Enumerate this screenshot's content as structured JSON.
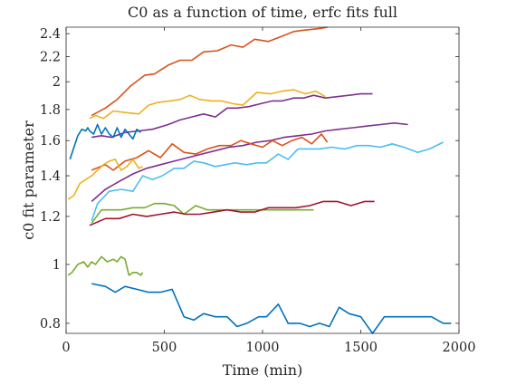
{
  "chart_data": {
    "type": "line",
    "title": "C0 as a function of time, erfc fits full",
    "xlabel": "Time (min)",
    "ylabel": "c0 fit parameter",
    "xlim": [
      0,
      2000
    ],
    "ylim": [
      0.77,
      2.46
    ],
    "yscale": "log",
    "xticks": [
      0,
      500,
      1000,
      1500,
      2000
    ],
    "yticks": [
      0.8,
      1,
      1.2,
      1.4,
      1.6,
      1.8,
      2,
      2.2,
      2.4
    ],
    "xtick_labels": [
      "0",
      "500",
      "1000",
      "1500",
      "2000"
    ],
    "ytick_labels": [
      "0.8",
      "1",
      "1.2",
      "1.4",
      "1.6",
      "1.8",
      "2",
      "2.2",
      "2.4"
    ],
    "grid": false,
    "legend": "none",
    "series": [
      {
        "color": "#D95319",
        "x": [
          130,
          200,
          260,
          330,
          400,
          450,
          520,
          580,
          640,
          700,
          770,
          840,
          900,
          960,
          1030,
          1090,
          1160,
          1200,
          1250,
          1300,
          1330
        ],
        "y": [
          1.76,
          1.81,
          1.87,
          1.97,
          2.05,
          2.06,
          2.13,
          2.17,
          2.17,
          2.24,
          2.25,
          2.3,
          2.28,
          2.35,
          2.33,
          2.37,
          2.42,
          2.43,
          2.44,
          2.45,
          2.46
        ]
      },
      {
        "color": "#EDB120",
        "x": [
          120,
          150,
          190,
          240,
          300,
          370,
          420,
          470,
          530,
          580,
          630,
          680,
          740,
          790,
          850,
          900,
          970,
          1040,
          1100,
          1160,
          1220,
          1270,
          1320
        ],
        "y": [
          1.74,
          1.76,
          1.74,
          1.79,
          1.78,
          1.77,
          1.83,
          1.85,
          1.86,
          1.87,
          1.9,
          1.87,
          1.86,
          1.86,
          1.84,
          1.83,
          1.92,
          1.91,
          1.93,
          1.94,
          1.91,
          1.93,
          1.89
        ]
      },
      {
        "color": "#7E2F8E",
        "x": [
          130,
          180,
          230,
          300,
          370,
          440,
          520,
          580,
          640,
          700,
          760,
          820,
          870,
          930,
          990,
          1050,
          1100,
          1160,
          1210,
          1260,
          1320,
          1380,
          1440,
          1500,
          1560
        ],
        "y": [
          1.62,
          1.63,
          1.62,
          1.65,
          1.66,
          1.67,
          1.7,
          1.73,
          1.75,
          1.77,
          1.75,
          1.81,
          1.81,
          1.82,
          1.84,
          1.86,
          1.86,
          1.88,
          1.88,
          1.9,
          1.88,
          1.89,
          1.9,
          1.91,
          1.91
        ]
      },
      {
        "color": "#7E2F8E",
        "x": [
          130,
          200,
          270,
          340,
          410,
          480,
          550,
          620,
          690,
          760,
          830,
          900,
          970,
          1040,
          1110,
          1180,
          1250,
          1320,
          1390,
          1460,
          1530,
          1600,
          1670,
          1740
        ],
        "y": [
          1.27,
          1.33,
          1.37,
          1.41,
          1.44,
          1.46,
          1.48,
          1.5,
          1.52,
          1.54,
          1.56,
          1.57,
          1.59,
          1.6,
          1.62,
          1.63,
          1.64,
          1.66,
          1.67,
          1.68,
          1.69,
          1.7,
          1.71,
          1.7
        ]
      },
      {
        "color": "#D95319",
        "x": [
          130,
          200,
          240,
          300,
          360,
          420,
          480,
          540,
          600,
          660,
          720,
          780,
          840,
          890,
          940,
          1000,
          1050,
          1100,
          1150,
          1200,
          1250,
          1300,
          1330
        ],
        "y": [
          1.43,
          1.46,
          1.43,
          1.48,
          1.5,
          1.54,
          1.5,
          1.58,
          1.53,
          1.52,
          1.55,
          1.57,
          1.57,
          1.6,
          1.58,
          1.56,
          1.6,
          1.57,
          1.6,
          1.62,
          1.58,
          1.64,
          1.59
        ]
      },
      {
        "color": "#4DBEEE",
        "x": [
          130,
          160,
          220,
          280,
          340,
          390,
          440,
          490,
          550,
          600,
          650,
          700,
          760,
          810,
          860,
          920,
          970,
          1020,
          1080,
          1130,
          1180,
          1240,
          1290,
          1350,
          1420,
          1480,
          1540,
          1600,
          1660,
          1720,
          1790,
          1850,
          1920
        ],
        "y": [
          1.18,
          1.26,
          1.32,
          1.33,
          1.32,
          1.4,
          1.38,
          1.4,
          1.44,
          1.44,
          1.48,
          1.47,
          1.45,
          1.46,
          1.47,
          1.46,
          1.47,
          1.47,
          1.52,
          1.49,
          1.55,
          1.55,
          1.55,
          1.56,
          1.55,
          1.57,
          1.57,
          1.56,
          1.58,
          1.56,
          1.53,
          1.55,
          1.59
        ]
      },
      {
        "color": "#77AC30",
        "x": [
          130,
          180,
          220,
          280,
          340,
          400,
          450,
          500,
          550,
          600,
          660,
          720,
          780,
          840,
          900,
          960,
          1020,
          1090,
          1150,
          1200,
          1260
        ],
        "y": [
          1.17,
          1.23,
          1.23,
          1.23,
          1.24,
          1.24,
          1.26,
          1.26,
          1.25,
          1.21,
          1.25,
          1.23,
          1.23,
          1.23,
          1.23,
          1.23,
          1.23,
          1.23,
          1.23,
          1.23,
          1.23
        ]
      },
      {
        "color": "#A2142F",
        "x": [
          120,
          200,
          270,
          340,
          410,
          480,
          550,
          610,
          680,
          750,
          820,
          890,
          960,
          1030,
          1100,
          1170,
          1240,
          1310,
          1380,
          1450,
          1520,
          1570
        ],
        "y": [
          1.16,
          1.19,
          1.19,
          1.21,
          1.2,
          1.21,
          1.22,
          1.21,
          1.21,
          1.22,
          1.23,
          1.22,
          1.22,
          1.24,
          1.24,
          1.24,
          1.25,
          1.27,
          1.27,
          1.25,
          1.27,
          1.27
        ]
      },
      {
        "color": "#0072BD",
        "x": [
          130,
          200,
          250,
          300,
          360,
          420,
          480,
          540,
          600,
          650,
          700,
          760,
          820,
          870,
          920,
          980,
          1020,
          1080,
          1130,
          1190,
          1240,
          1290,
          1340,
          1390,
          1440,
          1500,
          1560,
          1620,
          1680,
          1740,
          1800,
          1860,
          1920,
          1960
        ],
        "y": [
          0.93,
          0.92,
          0.9,
          0.92,
          0.91,
          0.9,
          0.9,
          0.91,
          0.82,
          0.81,
          0.83,
          0.82,
          0.82,
          0.79,
          0.8,
          0.82,
          0.82,
          0.86,
          0.8,
          0.8,
          0.79,
          0.8,
          0.79,
          0.85,
          0.83,
          0.82,
          0.77,
          0.82,
          0.82,
          0.82,
          0.82,
          0.82,
          0.8,
          0.8
        ]
      },
      {
        "color": "#0072BD",
        "x": [
          20,
          40,
          60,
          80,
          100,
          110,
          120,
          140,
          160,
          180,
          200,
          220,
          240,
          260,
          280,
          300,
          320,
          340,
          360,
          380
        ],
        "y": [
          1.49,
          1.56,
          1.63,
          1.67,
          1.66,
          1.68,
          1.66,
          1.64,
          1.7,
          1.64,
          1.68,
          1.64,
          1.62,
          1.68,
          1.62,
          1.67,
          1.64,
          1.61,
          1.67,
          1.65
        ]
      },
      {
        "color": "#EDB120",
        "x": [
          10,
          40,
          70,
          100,
          130,
          160,
          190,
          220,
          250,
          280,
          310,
          340,
          370,
          390
        ],
        "y": [
          1.28,
          1.3,
          1.36,
          1.38,
          1.4,
          1.43,
          1.46,
          1.48,
          1.49,
          1.43,
          1.45,
          1.49,
          1.44,
          1.45
        ]
      },
      {
        "color": "#77AC30",
        "x": [
          10,
          30,
          60,
          90,
          110,
          130,
          150,
          180,
          210,
          240,
          260,
          280,
          300,
          320,
          340,
          360,
          380,
          390
        ],
        "y": [
          0.96,
          0.97,
          1.0,
          1.01,
          0.99,
          1.01,
          1.0,
          1.03,
          1.01,
          1.02,
          1.01,
          1.03,
          1.02,
          0.96,
          0.97,
          0.97,
          0.96,
          0.97
        ]
      }
    ]
  }
}
